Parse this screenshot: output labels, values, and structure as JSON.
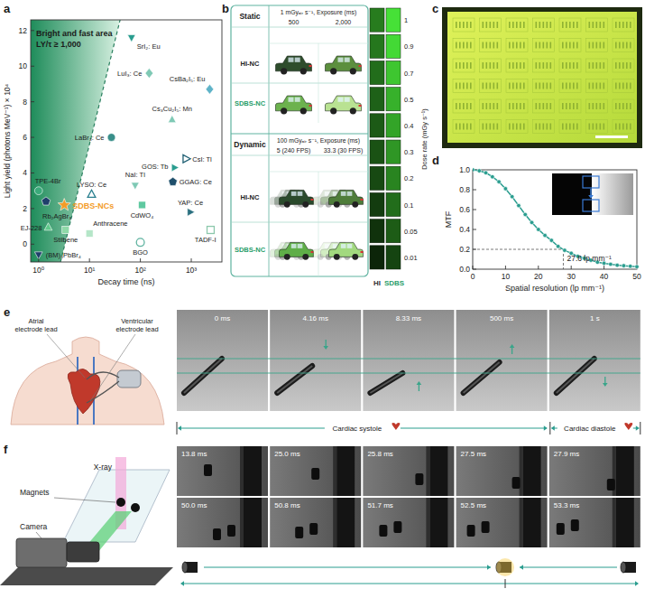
{
  "panel_labels": [
    "a",
    "b",
    "c",
    "d",
    "e",
    "f"
  ],
  "chart_data": [
    {
      "type": "scatter",
      "xlabel": "Decay time (ns)",
      "ylabel": "Light yield (photons MeV⁻¹) × 10⁴",
      "log": "x",
      "xlim": [
        0.7,
        4000
      ],
      "ylim": [
        -1,
        12.6
      ],
      "xticks": [
        {
          "value": 1,
          "label": "10⁰"
        },
        {
          "value": 10,
          "label": "10¹"
        },
        {
          "value": 100,
          "label": "10²"
        },
        {
          "value": 1000,
          "label": "10³"
        }
      ],
      "yticks": [
        0,
        2,
        4,
        6,
        8,
        10,
        12
      ],
      "annotations": [
        "Bright and fast area",
        "LY/τ ≥ 1,000"
      ],
      "boundary": {
        "x": [
          2.7,
          40
        ],
        "y": [
          -1,
          12.6
        ]
      },
      "series": [
        {
          "name": "SrI₂: Eu",
          "x": [
            67
          ],
          "values": [
            11.6
          ],
          "color": "#2a9d8f",
          "marker": "triangle-down"
        },
        {
          "name": "LuI₃: Ce",
          "x": [
            149
          ],
          "values": [
            9.6
          ],
          "color": "#7fc9b5",
          "marker": "diamond"
        },
        {
          "name": "CsBa₂I₅: Eu",
          "x": [
            2300
          ],
          "values": [
            8.7
          ],
          "color": "#5fb3c8",
          "marker": "diamond"
        },
        {
          "name": "Cs₃Cu₂I₅: Mn",
          "x": [
            420
          ],
          "values": [
            7.0
          ],
          "color": "#7fc9b5",
          "marker": "triangle-up"
        },
        {
          "name": "LaBr₃: Ce",
          "x": [
            27
          ],
          "values": [
            6.0
          ],
          "color": "#3a8f8a",
          "marker": "circle"
        },
        {
          "name": "GOS: Tb",
          "x": [
            470
          ],
          "values": [
            4.3
          ],
          "color": "#2a9d8f",
          "marker": "triangle-right"
        },
        {
          "name": "CsI: Tl",
          "x": [
            790
          ],
          "values": [
            4.8
          ],
          "color": "#1f5f73",
          "marker": "triangle-right-open"
        },
        {
          "name": "NaI: Tl",
          "x": [
            79
          ],
          "values": [
            3.3
          ],
          "color": "#7fc9b5",
          "marker": "triangle-down"
        },
        {
          "name": "GGAG: Ce",
          "x": [
            435
          ],
          "values": [
            3.5
          ],
          "color": "#1f4f6b",
          "marker": "pentagon"
        },
        {
          "name": "LYSO: Ce",
          "x": [
            11
          ],
          "values": [
            2.8
          ],
          "color": "#2a7f8f",
          "marker": "triangle-up-open"
        },
        {
          "name": "TPE-4Br",
          "x": [
            1.0
          ],
          "values": [
            3.0
          ],
          "color": "#3aaa7a",
          "marker": "circle"
        },
        {
          "name": "Rb₂AgBr₃",
          "x": [
            1.4
          ],
          "values": [
            2.4
          ],
          "color": "#1f3f6b",
          "marker": "pentagon"
        },
        {
          "name": "SDBS-NCs",
          "x": [
            3.2
          ],
          "values": [
            2.2
          ],
          "color": "#f39c28",
          "marker": "star"
        },
        {
          "name": "CdWO₄",
          "x": [
            108
          ],
          "values": [
            2.2
          ],
          "color": "#5fc9a0",
          "marker": "square"
        },
        {
          "name": "YAP: Ce",
          "x": [
            960
          ],
          "values": [
            1.8
          ],
          "color": "#2a6f7f",
          "marker": "triangle-right"
        },
        {
          "name": "EJ-228",
          "x": [
            1.55
          ],
          "values": [
            0.95
          ],
          "color": "#5fc98a",
          "marker": "triangle-up"
        },
        {
          "name": "Stilbene",
          "x": [
            3.4
          ],
          "values": [
            0.8
          ],
          "color": "#8fd9a8",
          "marker": "square"
        },
        {
          "name": "Anthracene",
          "x": [
            10
          ],
          "values": [
            0.6
          ],
          "color": "#b5e6c8",
          "marker": "square"
        },
        {
          "name": "TADF-I",
          "x": [
            2400
          ],
          "values": [
            0.8
          ],
          "color": "#8cc8ac",
          "marker": "square-open"
        },
        {
          "name": "BGO",
          "x": [
            100
          ],
          "values": [
            0.1
          ],
          "color": "#5fb3a0",
          "marker": "circle-open"
        },
        {
          "name": "(BM)₃PbBr₄",
          "x": [
            1.0
          ],
          "values": [
            -0.6
          ],
          "color": "#1f3f6b",
          "marker": "triangle-down"
        }
      ]
    },
    {
      "type": "line",
      "xlabel": "Spatial resolution (lp mm⁻¹)",
      "ylabel": "MTF",
      "xlim": [
        0,
        50
      ],
      "ylim": [
        0,
        1
      ],
      "xticks": [
        0,
        10,
        20,
        30,
        40,
        50
      ],
      "yticks": [
        {
          "value": 0,
          "label": "0.0"
        },
        0.2,
        0.4,
        0.6,
        0.8,
        {
          "value": 1,
          "label": "1.0"
        }
      ],
      "x": [
        0,
        2,
        4,
        6,
        8,
        10,
        12,
        14,
        16,
        18,
        20,
        22,
        24,
        26,
        28,
        30,
        32,
        34,
        36,
        38,
        40,
        42,
        44,
        46,
        48,
        50
      ],
      "series": [
        {
          "color": "#2a9d8f",
          "marker": "circle",
          "values": [
            1.0,
            0.99,
            0.97,
            0.93,
            0.88,
            0.81,
            0.73,
            0.64,
            0.55,
            0.47,
            0.4,
            0.34,
            0.29,
            0.23,
            0.19,
            0.16,
            0.13,
            0.11,
            0.09,
            0.07,
            0.06,
            0.05,
            0.04,
            0.035,
            0.03,
            0.025
          ]
        }
      ],
      "annotation": {
        "text": "27.6 lp mm⁻¹",
        "x": 27.6,
        "y": 0.2
      }
    }
  ],
  "panel_b": {
    "static": {
      "label": "Static",
      "condition": "1 mGyₐᵢᵣ s⁻¹, Exposure (ms)",
      "exposures": [
        "500",
        "2,000"
      ]
    },
    "dynamic": {
      "label": "Dynamic",
      "condition": "100 mGyₐᵢᵣ s⁻¹, Exposure (ms)",
      "exposures": [
        "5 (240 FPS)",
        "33.3 (30 FPS)"
      ]
    },
    "rows": [
      "HI-NC",
      "SDBS-NC"
    ],
    "dose_rate_label": "Dose rate (mGy s⁻¹)",
    "dose_rates": [
      1,
      0.9,
      0.7,
      0.5,
      0.4,
      0.3,
      0.2,
      0.1,
      0.05,
      0.01
    ],
    "columns": [
      "HI",
      "SDBS"
    ]
  },
  "panel_e": {
    "labels": [
      "Atrial electrode lead",
      "Ventricular electrode lead"
    ],
    "frames": [
      "0 ms",
      "4.16 ms",
      "8.33 ms",
      "500 ms",
      "1 s"
    ],
    "phases": [
      "Cardiac systole",
      "Cardiac diastole"
    ]
  },
  "panel_f": {
    "labels": [
      "X-ray",
      "Magnets",
      "Camera"
    ],
    "frames": [
      [
        "13.8 ms",
        "25.0 ms",
        "25.8 ms",
        "27.5 ms",
        "27.9 ms"
      ],
      [
        "50.0 ms",
        "50.8 ms",
        "51.7 ms",
        "52.5 ms",
        "53.3 ms"
      ]
    ]
  }
}
